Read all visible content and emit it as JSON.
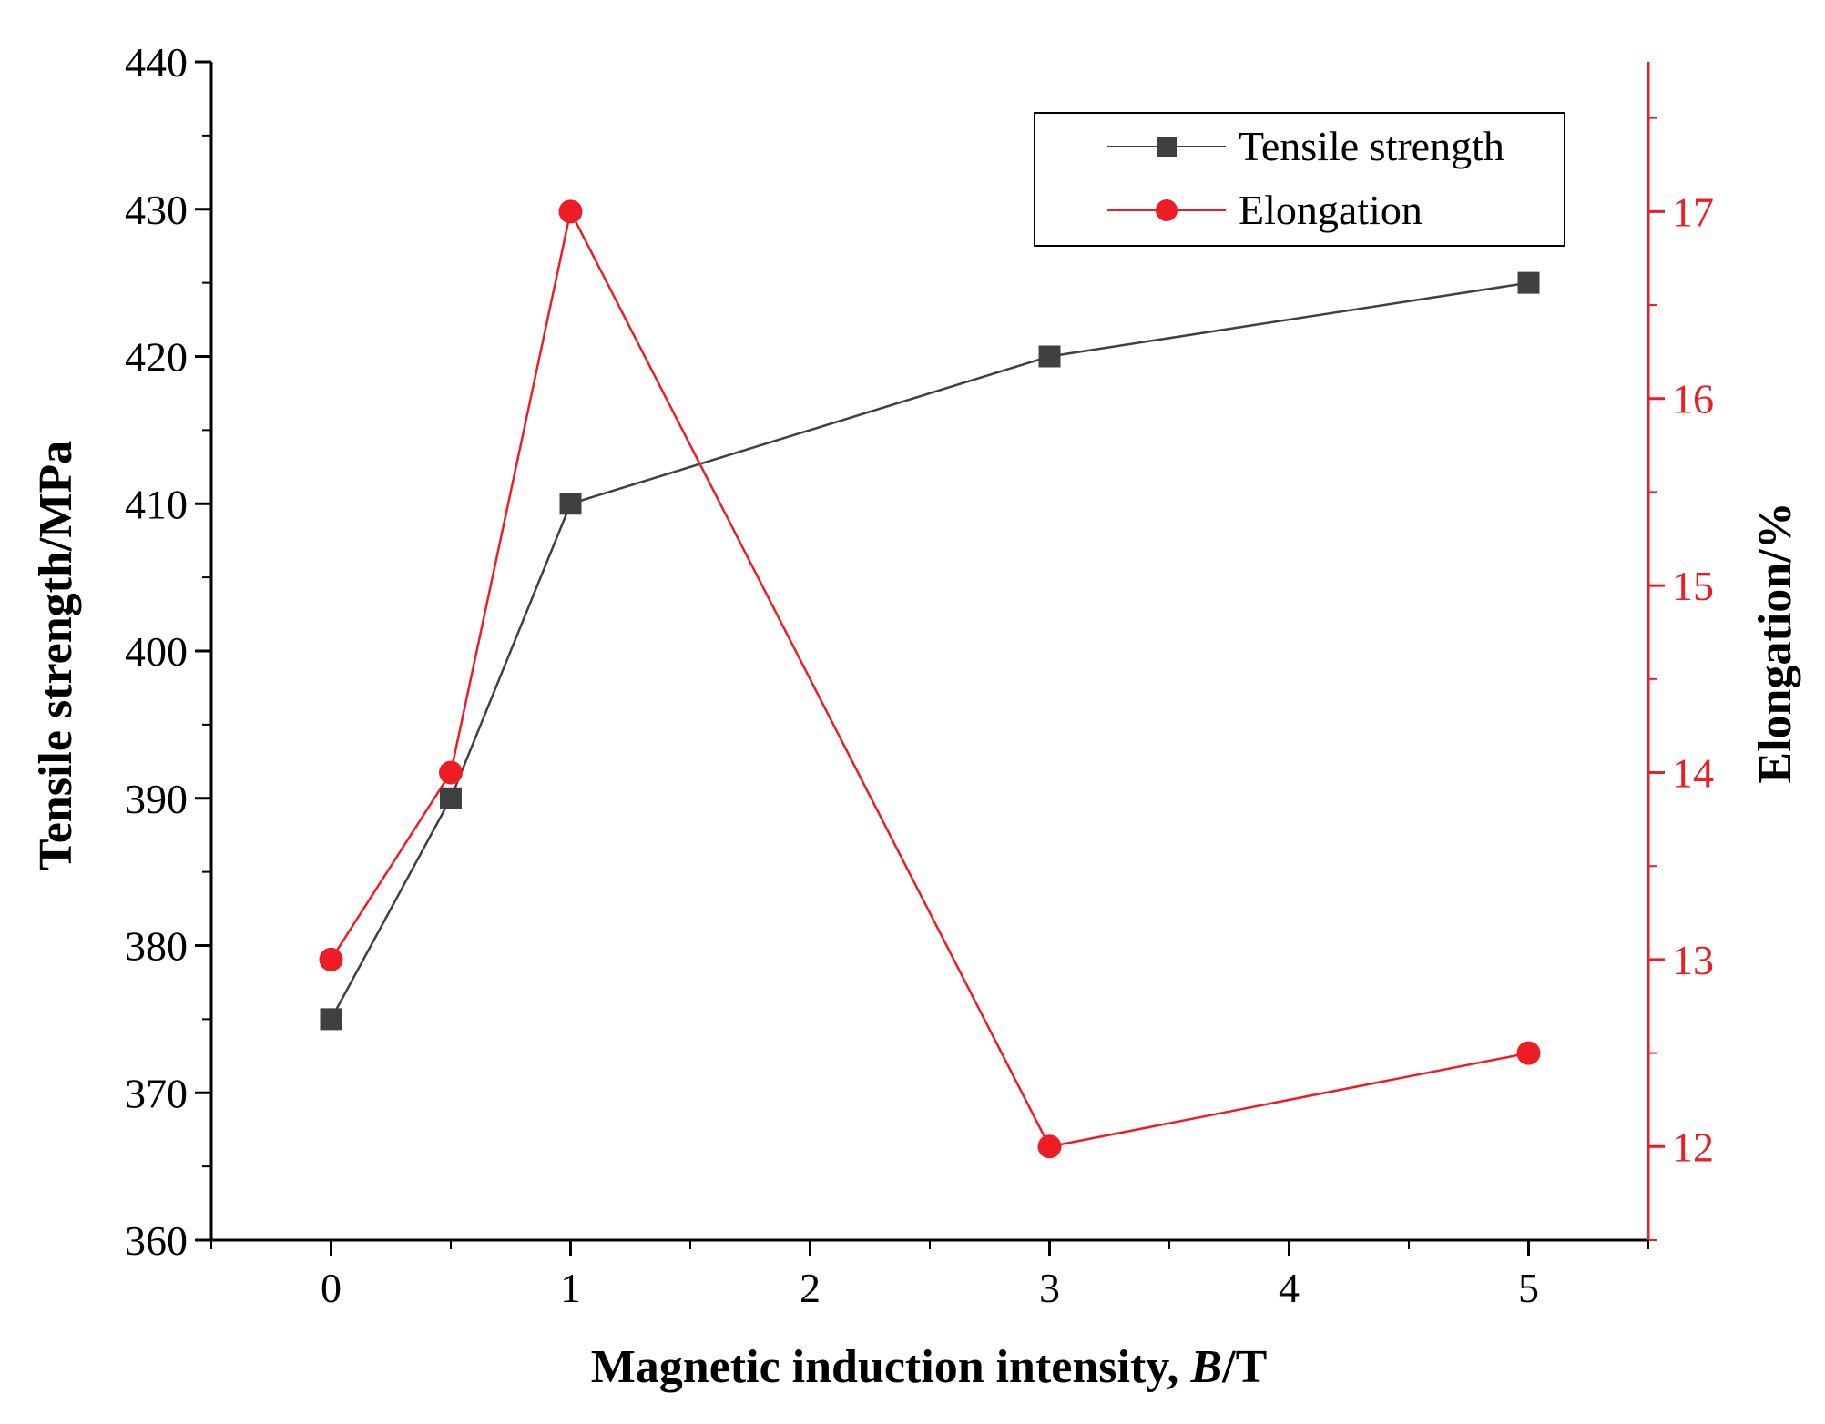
{
  "chart_data": {
    "type": "line",
    "title": "",
    "x": [
      0,
      0.5,
      1,
      3,
      5
    ],
    "xlabel_prefix": "Magnetic induction intensity, ",
    "xlabel_var": "B",
    "xlabel_suffix": "/T",
    "xlim": [
      -0.5,
      5.5
    ],
    "xticks": [
      0,
      1,
      2,
      3,
      4,
      5
    ],
    "xtick_labels": [
      "0",
      "1",
      "2",
      "3",
      "4",
      "5"
    ],
    "grid": false,
    "legend_position": "top-right",
    "left_axis": {
      "label": "Tensile strength/MPa",
      "ylim": [
        360,
        440
      ],
      "ticks": [
        360,
        370,
        380,
        390,
        400,
        410,
        420,
        430,
        440
      ],
      "tick_labels": [
        "360",
        "370",
        "380",
        "390",
        "400",
        "410",
        "420",
        "430",
        "440"
      ],
      "color": "#000000"
    },
    "right_axis": {
      "label": "Elongation/%",
      "ylim": [
        11.5,
        17.8
      ],
      "ticks": [
        12,
        13,
        14,
        15,
        16,
        17
      ],
      "tick_labels": [
        "12",
        "13",
        "14",
        "15",
        "16",
        "17"
      ],
      "color": "#ee1c25"
    },
    "series": [
      {
        "name": "Tensile strength",
        "axis": "left",
        "values": [
          375,
          390,
          410,
          420,
          425
        ],
        "color": "#404040",
        "marker": "square"
      },
      {
        "name": "Elongation",
        "axis": "right",
        "values": [
          13,
          14,
          17,
          12,
          12.5
        ],
        "color": "#ee1c25",
        "marker": "circle"
      }
    ]
  }
}
